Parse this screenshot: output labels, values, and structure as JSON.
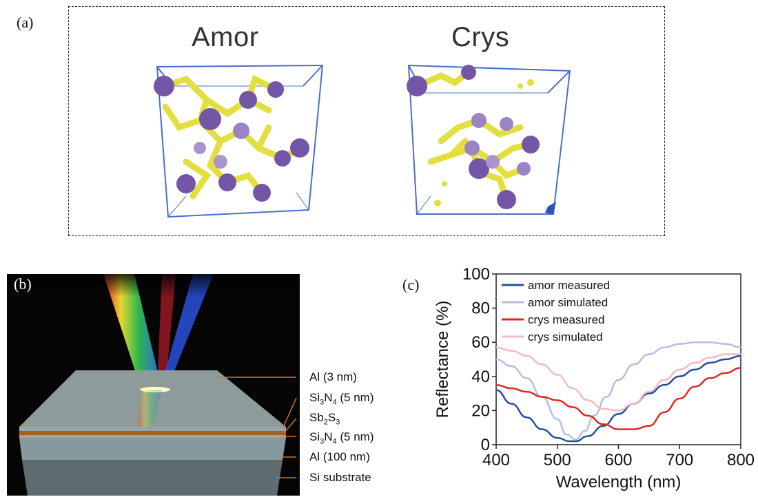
{
  "panel_a": {
    "label": "(a)",
    "structures": [
      {
        "title": "Amor"
      },
      {
        "title": "Crys"
      }
    ]
  },
  "panel_b": {
    "label": "(b)",
    "layers": [
      {
        "name": "Al (3 nm)"
      },
      {
        "name_main": "Si",
        "sub1": "3",
        "mid": "N",
        "sub2": "4",
        "suffix": " (5 nm)"
      },
      {
        "name_main": "Sb",
        "sub1": "2",
        "mid": "S",
        "sub2": "3",
        "suffix": ""
      },
      {
        "name_main": "Si",
        "sub1": "3",
        "mid": "N",
        "sub2": "4",
        "suffix": " (5 nm)"
      },
      {
        "name": "Al (100 nm)"
      },
      {
        "name": "Si substrate"
      }
    ]
  },
  "panel_c": {
    "label": "(c)"
  },
  "chart_data": {
    "type": "line",
    "xlabel": "Wavelength (nm)",
    "ylabel": "Reflectance (%)",
    "xlim": [
      400,
      800
    ],
    "ylim": [
      0,
      100
    ],
    "xticks": [
      400,
      500,
      600,
      700,
      800
    ],
    "yticks": [
      0,
      20,
      40,
      60,
      80,
      100
    ],
    "grid": false,
    "legend_position": "top-left",
    "series": [
      {
        "name": "amor measured",
        "color": "#1f4fa0",
        "x": [
          400,
          425,
          450,
          475,
          500,
          520,
          530,
          550,
          575,
          600,
          625,
          650,
          675,
          700,
          725,
          750,
          775,
          800
        ],
        "y": [
          32,
          24,
          16,
          9,
          4,
          2,
          2,
          5,
          11,
          18,
          24,
          30,
          35,
          40,
          44,
          48,
          50,
          52
        ]
      },
      {
        "name": "amor simulated",
        "color": "#b6bde3",
        "x": [
          400,
          425,
          450,
          475,
          500,
          515,
          530,
          545,
          560,
          580,
          600,
          625,
          650,
          675,
          700,
          725,
          750,
          775,
          800
        ],
        "y": [
          50,
          46,
          39,
          28,
          15,
          6,
          3,
          8,
          17,
          28,
          38,
          47,
          53,
          57,
          59,
          60,
          60,
          59,
          57
        ]
      },
      {
        "name": "crys measured",
        "color": "#e2281e",
        "x": [
          400,
          425,
          450,
          475,
          500,
          525,
          550,
          575,
          600,
          625,
          650,
          675,
          700,
          725,
          750,
          775,
          800
        ],
        "y": [
          35,
          33,
          31,
          28,
          26,
          22,
          17,
          12,
          9,
          9,
          11,
          19,
          27,
          34,
          39,
          42,
          45
        ]
      },
      {
        "name": "crys simulated",
        "color": "#f6b8c3",
        "x": [
          400,
          425,
          450,
          475,
          500,
          525,
          550,
          575,
          600,
          625,
          650,
          675,
          700,
          725,
          750,
          775,
          800
        ],
        "y": [
          57,
          55,
          52,
          47,
          41,
          33,
          26,
          21,
          20,
          24,
          31,
          38,
          44,
          48,
          51,
          53,
          53
        ]
      }
    ]
  }
}
